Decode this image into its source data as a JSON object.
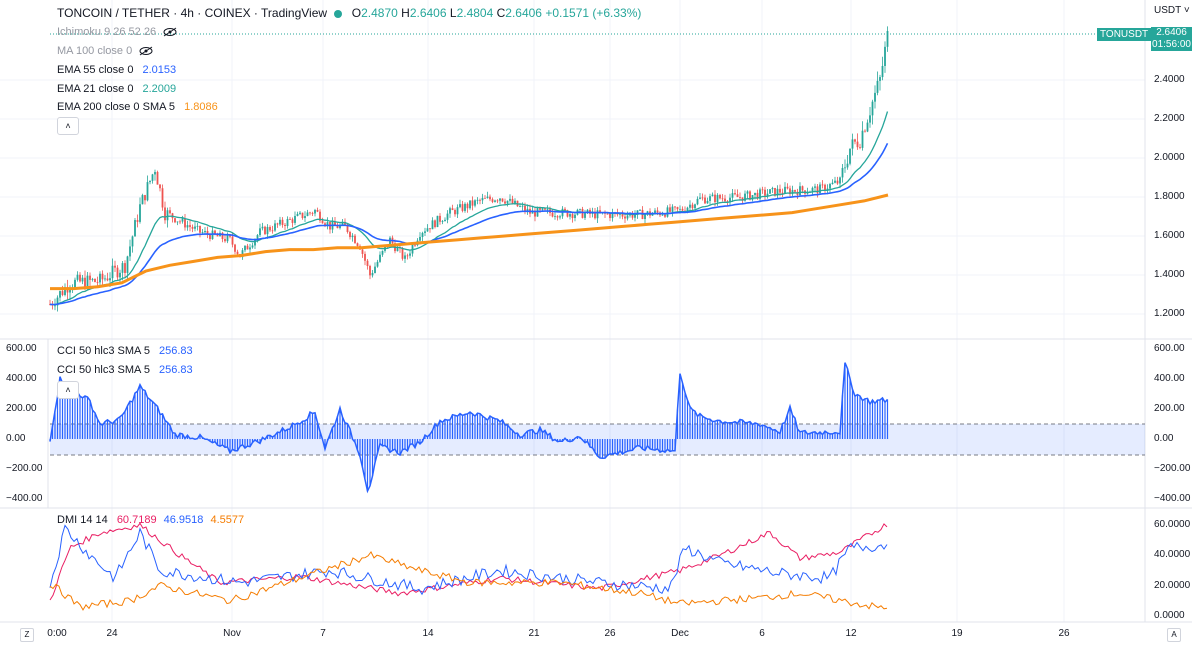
{
  "header": {
    "symbol": "TONCOIN / TETHER · 4h · COINEX · TradingView",
    "o_label": "O",
    "o": "2.4870",
    "h_label": "H",
    "h": "2.6406",
    "l_label": "L",
    "l": "2.4804",
    "c_label": "C",
    "c": "2.6406",
    "change": "+0.1571 (+6.33%)"
  },
  "indicators": {
    "ichimoku": "Ichimoku 9 26 52 26",
    "ma100": "MA 100 close 0",
    "ema55": {
      "label": "EMA 55 close 0",
      "value": "2.0153"
    },
    "ema21": {
      "label": "EMA 21 close 0",
      "value": "2.2009"
    },
    "ema200": {
      "label": "EMA 200 close 0 SMA 5",
      "value": "1.8086"
    },
    "collapse_icon": "chevron-up-icon",
    "hidden_icon": "eye-crossed-icon"
  },
  "cci": {
    "label1": "CCI 50 hlc3 SMA 5",
    "value1": "256.83",
    "label2": "CCI 50 hlc3 SMA 5",
    "value2": "256.83"
  },
  "dmi": {
    "label": "DMI 14 14",
    "v1": "60.7189",
    "v2": "46.9518",
    "v3": "4.5577"
  },
  "price_axis": {
    "currency": "USDT",
    "ticks": [
      "2.4000",
      "2.2000",
      "2.0000",
      "1.8000",
      "1.6000",
      "1.4000",
      "1.2000"
    ],
    "last_symbol": "TONUSDT",
    "last_price": "2.6406",
    "countdown": "01:56:00"
  },
  "cci_axis": {
    "right_ticks": [
      "600.00",
      "400.00",
      "200.00",
      "0.00",
      "−200.00",
      "−400.00"
    ],
    "left_ticks": [
      "600.00",
      "400.00",
      "200.00",
      "0.00",
      "−200.00",
      "−400.00"
    ]
  },
  "dmi_axis": {
    "ticks": [
      "60.0000",
      "40.0000",
      "20.0000",
      "0.0000"
    ]
  },
  "time_axis": {
    "labels": [
      "0:00",
      "24",
      "Nov",
      "7",
      "14",
      "21",
      "26",
      "Dec",
      "6",
      "12",
      "19",
      "26"
    ],
    "zoom_btn": "Z",
    "auto_btn": "A"
  },
  "colors": {
    "up": "#26a69a",
    "down": "#ef5350",
    "ema21": "#26a69a",
    "ema55": "#2962ff",
    "ema200": "#f7931a",
    "cci": "#2962ff",
    "dmi_plus": "#e91e63",
    "dmi_minus": "#2962ff",
    "adx": "#f57c00"
  },
  "chart_data": {
    "type": "line",
    "panes": [
      {
        "name": "price",
        "ylim": [
          1.2,
          2.7
        ],
        "ema200_series": [
          1.33,
          1.33,
          1.34,
          1.36,
          1.42,
          1.45,
          1.47,
          1.49,
          1.5,
          1.52,
          1.53,
          1.53,
          1.54,
          1.54,
          1.55,
          1.56,
          1.57,
          1.58,
          1.59,
          1.6,
          1.61,
          1.62,
          1.63,
          1.64,
          1.65,
          1.66,
          1.67,
          1.68,
          1.69,
          1.7,
          1.71,
          1.72,
          1.74,
          1.76,
          1.78,
          1.81
        ]
      },
      {
        "name": "cci",
        "ylim": [
          -400,
          600
        ]
      },
      {
        "name": "dmi",
        "ylim": [
          0,
          65
        ]
      }
    ]
  }
}
